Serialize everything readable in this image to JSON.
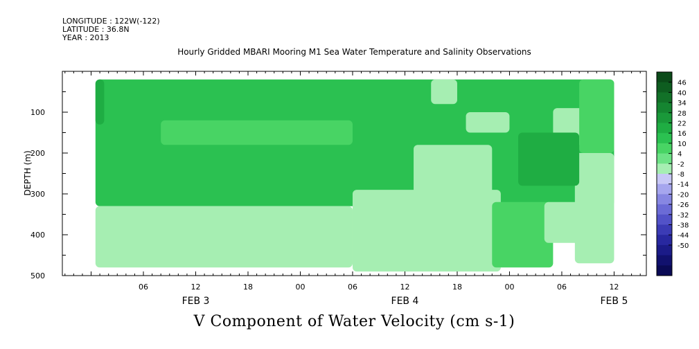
{
  "header": {
    "longitude": "LONGITUDE : 122W(-122)",
    "latitude": "LATITUDE : 36.8N",
    "year": "YEAR : 2013"
  },
  "chart_data": {
    "type": "heatmap",
    "title": "Hourly Gridded MBARI Mooring M1 Sea Water Temperature and Salinity Observations",
    "caption": "V Component of Water Velocity (cm s-1)",
    "ylabel": "DEPTH (m)",
    "ylim": [
      500,
      0
    ],
    "y_ticks": [
      100,
      200,
      300,
      400,
      500
    ],
    "x_hours_range": [
      0,
      60
    ],
    "x_tick_labels": [
      {
        "h": 6,
        "label": "06"
      },
      {
        "h": 12,
        "label": "12"
      },
      {
        "h": 18,
        "label": "18"
      },
      {
        "h": 24,
        "label": "00"
      },
      {
        "h": 30,
        "label": "06"
      },
      {
        "h": 36,
        "label": "12"
      },
      {
        "h": 42,
        "label": "18"
      },
      {
        "h": 48,
        "label": "00"
      },
      {
        "h": 54,
        "label": "06"
      },
      {
        "h": 60,
        "label": "12"
      }
    ],
    "date_labels": [
      {
        "h": 12,
        "label": "FEB  3"
      },
      {
        "h": 36,
        "label": "FEB  4"
      },
      {
        "h": 60,
        "label": "FEB  5"
      }
    ],
    "colorbar": {
      "levels": [
        "46",
        "40",
        "34",
        "28",
        "22",
        "16",
        "10",
        "4",
        "-2",
        "-8",
        "-14",
        "-20",
        "-26",
        "-32",
        "-38",
        "-44",
        "-50"
      ],
      "colors": [
        "#0b4a19",
        "#0e5d20",
        "#127128",
        "#158531",
        "#1a993a",
        "#1fad43",
        "#2bc151",
        "#48d464",
        "#6de286",
        "#a6eeb2",
        "#c8c8f6",
        "#a6a6ee",
        "#8787e2",
        "#6b6bd6",
        "#5252c8",
        "#3b3bb5",
        "#2828a0",
        "#1b1b88",
        "#11116e",
        "#0a0a55"
      ]
    },
    "regions": [
      {
        "value": 14,
        "h0": 0.5,
        "h1": 60,
        "d0": 20,
        "d1": 330
      },
      {
        "value": 20,
        "h0": 0.5,
        "h1": 1.5,
        "d0": 20,
        "d1": 130
      },
      {
        "value": 10,
        "h0": 8,
        "h1": 30,
        "d0": 120,
        "d1": 180
      },
      {
        "value": -4,
        "h0": 0.5,
        "h1": 30,
        "d0": 330,
        "d1": 480
      },
      {
        "value": -4,
        "h0": 30,
        "h1": 47,
        "d0": 290,
        "d1": 490
      },
      {
        "value": -4,
        "h0": 37,
        "h1": 46,
        "d0": 180,
        "d1": 300
      },
      {
        "value": -6,
        "h0": 38,
        "h1": 44,
        "d0": 230,
        "d1": 430
      },
      {
        "value": 6,
        "h0": 46,
        "h1": 53,
        "d0": 320,
        "d1": 480
      },
      {
        "value": -4,
        "h0": 52,
        "h1": 58,
        "d0": 320,
        "d1": 420
      },
      {
        "value": -4,
        "h0": 55.5,
        "h1": 60,
        "d0": 200,
        "d1": 470
      },
      {
        "value": -4,
        "h0": 39,
        "h1": 42,
        "d0": 20,
        "d1": 80
      },
      {
        "value": -4,
        "h0": 43,
        "h1": 48,
        "d0": 100,
        "d1": 150
      },
      {
        "value": -4,
        "h0": 53,
        "h1": 56.5,
        "d0": 90,
        "d1": 180
      },
      {
        "value": -4,
        "h0": 58.5,
        "h1": 60,
        "d0": 80,
        "d1": 130
      },
      {
        "value": 22,
        "h0": 49,
        "h1": 56,
        "d0": 150,
        "d1": 280
      },
      {
        "value": 6,
        "h0": 56,
        "h1": 60,
        "d0": 20,
        "d1": 200
      }
    ]
  }
}
